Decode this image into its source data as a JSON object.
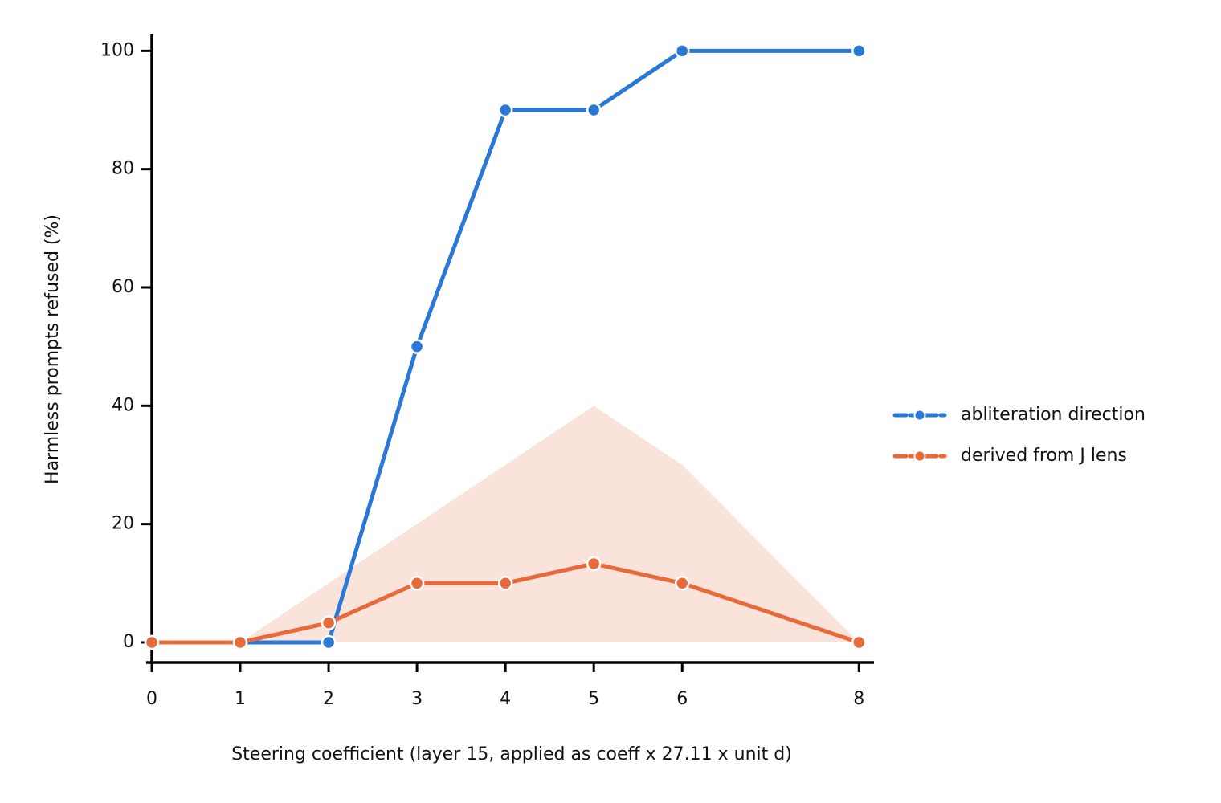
{
  "chart_data": {
    "type": "line",
    "x_label": "Steering coefficient  (layer 15, applied as coeff x 27.11 x unit d)",
    "y_label": "Harmless prompts refused (%)",
    "x": [
      0,
      1,
      2,
      3,
      4,
      5,
      6,
      8
    ],
    "series": [
      {
        "name": "abliteration direction",
        "color": "#2a78d6",
        "values": [
          0,
          0,
          0,
          50,
          90,
          90,
          100,
          100
        ]
      },
      {
        "name": "derived from J lens",
        "color": "#e8693a",
        "values": [
          0,
          0,
          3.3,
          10,
          10,
          13.3,
          10,
          0
        ]
      }
    ],
    "band": {
      "color": "#fae3da",
      "lower": [
        0,
        0,
        0,
        0,
        0,
        0,
        0,
        0
      ],
      "upper": [
        0,
        0,
        10,
        20,
        30,
        40,
        30,
        0
      ]
    },
    "xlim": [
      0,
      8.17
    ],
    "ylim": [
      -3.4,
      102.9
    ],
    "xticks": [
      0,
      1,
      2,
      3,
      4,
      5,
      6,
      8
    ],
    "yticks": [
      0,
      20,
      40,
      60,
      80,
      100
    ],
    "legend": "right"
  }
}
